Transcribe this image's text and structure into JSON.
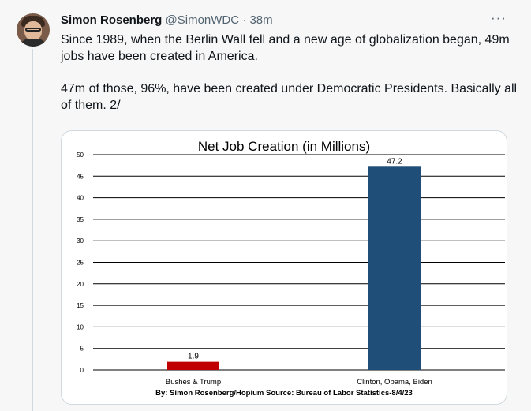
{
  "tweet": {
    "author_name": "Simon Rosenberg",
    "author_handle": "@SimonWDC",
    "time_separator": " · ",
    "time": "38m",
    "more_icon": "···",
    "paragraph1": "Since 1989, when the Berlin Wall fell and a new age of globalization began, 49m jobs have been created in America.",
    "paragraph2": "47m of those, 96%, have been created under Democratic Presidents. Basically all of them.  2/"
  },
  "colors": {
    "bar_republican": "#c00000",
    "bar_democratic": "#1f4e79"
  },
  "chart_data": {
    "type": "bar",
    "title": "Net Job Creation (in Millions)",
    "source": "By: Simon Rosenberg/Hopium Source: Bureau of Labor Statistics-8/4/23",
    "categories": [
      "Bushes & Trump",
      "Clinton, Obama, Biden"
    ],
    "values": [
      1.9,
      47.2
    ],
    "data_labels": [
      "1.9",
      "47.2"
    ],
    "ylim": [
      0,
      50
    ],
    "yticks": [
      "0",
      "5",
      "10",
      "15",
      "20",
      "25",
      "30",
      "35",
      "40",
      "45",
      "50"
    ],
    "grid": true,
    "xlabel": "",
    "ylabel": ""
  }
}
